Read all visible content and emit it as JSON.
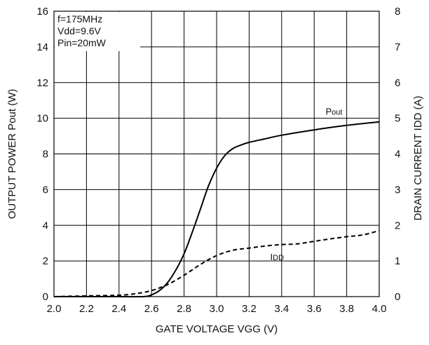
{
  "chart_data": {
    "type": "line",
    "xlabel": "GATE VOLTAGE VGG (V)",
    "ylabel_left": "OUTPUT POWER Pout (W)",
    "ylabel_right": "DRAIN CURRENT IDD (A)",
    "xlim": [
      2.0,
      4.0
    ],
    "ylim_left": [
      0,
      16
    ],
    "ylim_right": [
      0,
      8
    ],
    "x_ticks": [
      "2.0",
      "2.2",
      "2.4",
      "2.6",
      "2.8",
      "3.0",
      "3.2",
      "3.4",
      "3.6",
      "3.8",
      "4.0"
    ],
    "y_left_ticks": [
      "0",
      "2",
      "4",
      "6",
      "8",
      "10",
      "12",
      "14",
      "16"
    ],
    "y_right_ticks": [
      "0",
      "1",
      "2",
      "3",
      "4",
      "5",
      "6",
      "7",
      "8"
    ],
    "grid": true,
    "annotations": [
      "f=175MHz",
      "Vdd=9.6V",
      "Pin=20mW"
    ],
    "series": [
      {
        "name": "Pout",
        "axis": "left",
        "style": "solid",
        "x": [
          2.0,
          2.4,
          2.55,
          2.6,
          2.65,
          2.7,
          2.75,
          2.8,
          2.85,
          2.9,
          2.95,
          3.0,
          3.05,
          3.1,
          3.15,
          3.2,
          3.3,
          3.4,
          3.6,
          3.8,
          4.0
        ],
        "y": [
          0,
          0,
          0,
          0.1,
          0.35,
          0.8,
          1.5,
          2.4,
          3.6,
          4.9,
          6.2,
          7.2,
          7.9,
          8.3,
          8.5,
          8.65,
          8.85,
          9.05,
          9.35,
          9.6,
          9.8
        ]
      },
      {
        "name": "IDD",
        "axis": "right",
        "style": "dashed",
        "x": [
          2.0,
          2.2,
          2.4,
          2.5,
          2.6,
          2.7,
          2.8,
          2.9,
          3.0,
          3.1,
          3.2,
          3.3,
          3.4,
          3.5,
          3.6,
          3.7,
          3.8,
          3.9,
          4.0
        ],
        "y": [
          0,
          0.02,
          0.04,
          0.08,
          0.17,
          0.34,
          0.6,
          0.9,
          1.15,
          1.3,
          1.36,
          1.42,
          1.46,
          1.48,
          1.55,
          1.62,
          1.68,
          1.73,
          1.85
        ]
      }
    ]
  }
}
